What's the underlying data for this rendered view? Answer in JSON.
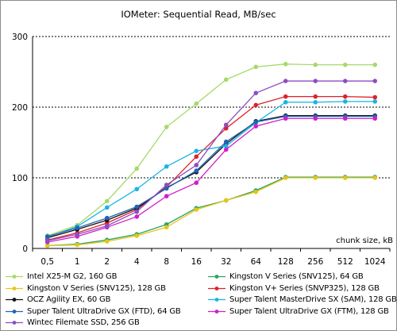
{
  "chart_data": {
    "type": "line",
    "title": "IOMeter: Sequential Read, MB/sec",
    "xlabel": "chunk size, kB",
    "ylabel": "",
    "categories": [
      "0,5",
      "1",
      "2",
      "4",
      "8",
      "16",
      "32",
      "64",
      "128",
      "256",
      "512",
      "1024"
    ],
    "ylim": [
      0,
      300
    ],
    "yticks": [
      0,
      100,
      200,
      300
    ],
    "grid": "horizontal dashed",
    "legend_placement": "bottom",
    "series": [
      {
        "name": "Intel X25-M G2, 160 GB",
        "color": "#a6d96a",
        "values": [
          18,
          33,
          67,
          113,
          172,
          205,
          239,
          257,
          261,
          260,
          260,
          260
        ]
      },
      {
        "name": "Kingston V Series (SNV125), 64 GB",
        "color": "#2ca25f",
        "values": [
          4,
          6,
          12,
          20,
          34,
          57,
          68,
          82,
          101,
          101,
          101,
          101
        ]
      },
      {
        "name": "Kingston V Series (SNV125), 128 GB",
        "color": "#e6c619",
        "values": [
          4,
          5,
          10,
          18,
          30,
          55,
          68,
          80,
          100,
          100,
          100,
          100
        ]
      },
      {
        "name": "Kingston V+ Series (SNVP325), 128 GB",
        "color": "#e0202a",
        "values": [
          12,
          22,
          36,
          55,
          87,
          130,
          170,
          203,
          215,
          215,
          215,
          214
        ]
      },
      {
        "name": "OCZ Agility EX, 60 GB",
        "color": "#111111",
        "values": [
          15,
          27,
          40,
          57,
          86,
          108,
          148,
          180,
          188,
          188,
          188,
          188
        ]
      },
      {
        "name": "Super Talent MasterDrive SX (SAM), 128 GB",
        "color": "#19b4e6",
        "values": [
          16,
          31,
          58,
          84,
          116,
          138,
          145,
          178,
          207,
          207,
          208,
          208
        ]
      },
      {
        "name": "Super Talent UltraDrive GX (FTD), 64 GB",
        "color": "#1f64b4",
        "values": [
          17,
          29,
          43,
          59,
          85,
          110,
          151,
          179,
          187,
          187,
          187,
          187
        ]
      },
      {
        "name": "Super Talent UltraDrive GX (FTM), 128 GB",
        "color": "#d01ec8",
        "values": [
          9,
          17,
          30,
          45,
          74,
          93,
          140,
          173,
          184,
          184,
          184,
          184
        ]
      },
      {
        "name": "Wintec Filemate SSD, 256 GB",
        "color": "#8c4ec0",
        "values": [
          11,
          20,
          32,
          52,
          90,
          118,
          175,
          220,
          237,
          237,
          237,
          237
        ]
      }
    ]
  }
}
